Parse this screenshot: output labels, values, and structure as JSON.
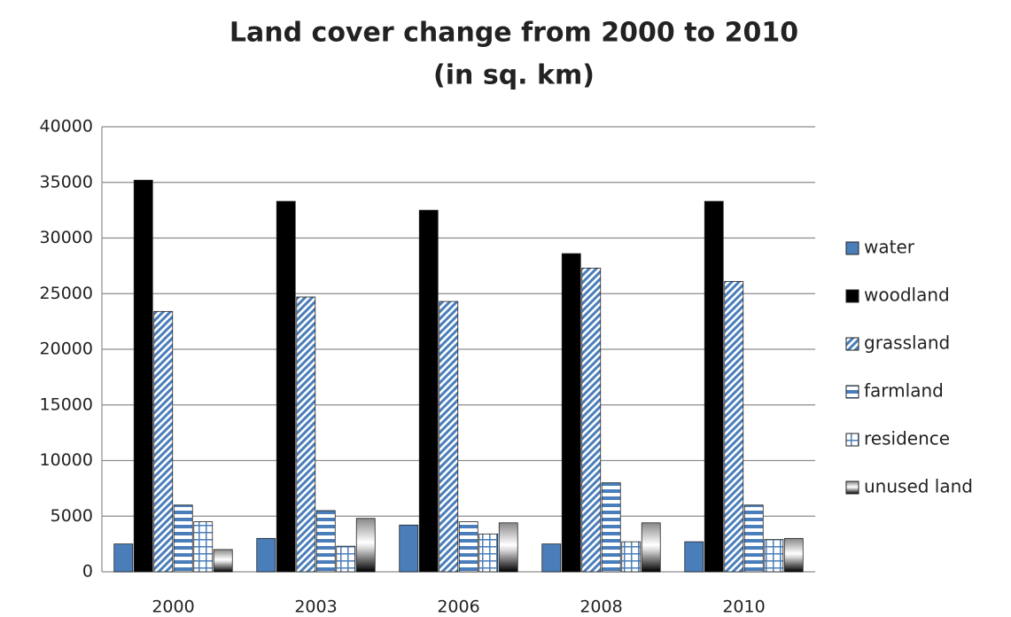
{
  "chart_data": {
    "type": "bar",
    "title": "Land cover change from 2000 to 2010",
    "subtitle": "(in sq. km)",
    "categories": [
      "2000",
      "2003",
      "2006",
      "2008",
      "2010"
    ],
    "series": [
      {
        "name": "water",
        "color": "#4a7ebb",
        "pattern": "solid",
        "values": [
          2500,
          3000,
          4200,
          2500,
          2700
        ]
      },
      {
        "name": "woodland",
        "color": "#000000",
        "pattern": "solid",
        "values": [
          35200,
          33300,
          32500,
          28600,
          33300
        ]
      },
      {
        "name": "grassland",
        "color": "#4a7ebb",
        "pattern": "diagonal",
        "values": [
          23400,
          24700,
          24300,
          27300,
          26100
        ]
      },
      {
        "name": "farmland",
        "color": "#4a7ebb",
        "pattern": "horizontal",
        "values": [
          6000,
          5500,
          4500,
          8000,
          6000
        ]
      },
      {
        "name": "residence",
        "color": "#4a7ebb",
        "pattern": "grid",
        "values": [
          4500,
          2300,
          3400,
          2700,
          2900
        ]
      },
      {
        "name": "unused land",
        "color": "#000000",
        "pattern": "gradient",
        "values": [
          2000,
          4800,
          4400,
          4400,
          3000
        ]
      }
    ],
    "ylim": [
      0,
      40000
    ],
    "yticks": [
      0,
      5000,
      10000,
      15000,
      20000,
      25000,
      30000,
      35000,
      40000
    ],
    "grid": true,
    "legend": "right"
  }
}
